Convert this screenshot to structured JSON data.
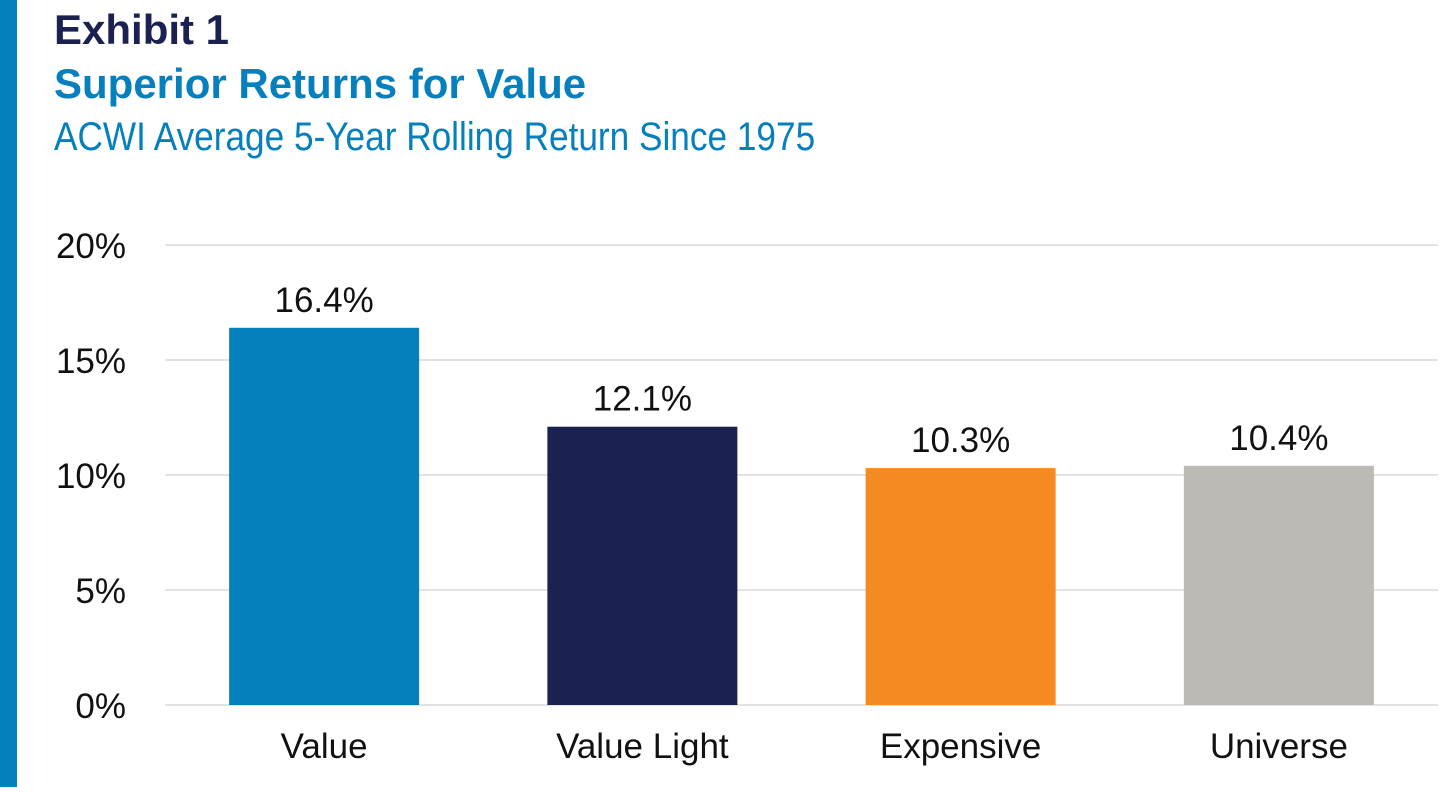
{
  "header": {
    "exhibit": "Exhibit 1",
    "title": "Superior Returns for Value",
    "subtitle": "ACWI Average 5-Year Rolling Return Since 1975"
  },
  "colors": {
    "accent_bar": "#0580bd",
    "gridline": "#d9d9d9",
    "text": "#111111"
  },
  "chart_data": {
    "type": "bar",
    "categories": [
      "Value",
      "Value Light",
      "Expensive",
      "Universe"
    ],
    "values": [
      16.4,
      12.1,
      10.3,
      10.4
    ],
    "data_labels": [
      "16.4%",
      "12.1%",
      "10.3%",
      "10.4%"
    ],
    "bar_colors": [
      "#0580bd",
      "#1b2150",
      "#f58a22",
      "#bdbab5"
    ],
    "y_ticks": [
      0,
      5,
      10,
      15,
      20
    ],
    "y_tick_labels": [
      "0%",
      "5%",
      "10%",
      "15%",
      "20%"
    ],
    "ylim": [
      0,
      20
    ],
    "grid": true,
    "legend": false
  }
}
